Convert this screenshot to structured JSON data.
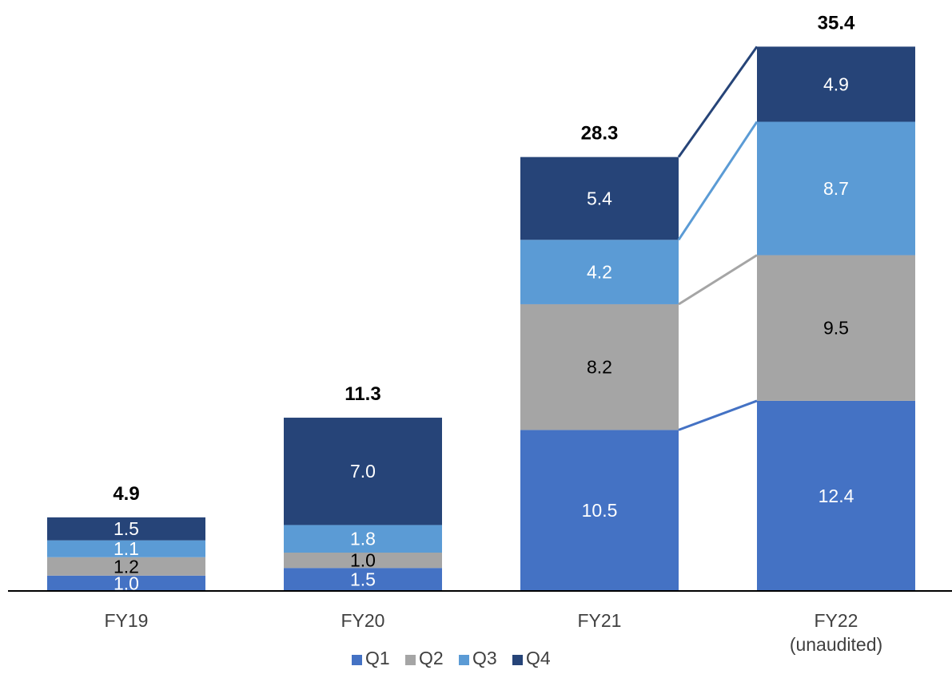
{
  "chart_data": {
    "type": "bar",
    "stacked": true,
    "categories": [
      [
        "FY19"
      ],
      [
        "FY20"
      ],
      [
        "FY21"
      ],
      [
        "FY22",
        "(unaudited)"
      ]
    ],
    "series": [
      {
        "name": "Q1",
        "color": "#4472C4",
        "values": [
          1.0,
          1.5,
          10.5,
          12.4
        ],
        "label_color": "#ffffff"
      },
      {
        "name": "Q2",
        "color": "#A5A5A5",
        "values": [
          1.2,
          1.0,
          8.2,
          9.5
        ],
        "label_color": "#000000"
      },
      {
        "name": "Q3",
        "color": "#5B9BD5",
        "values": [
          1.1,
          1.8,
          4.2,
          8.7
        ],
        "label_color": "#ffffff"
      },
      {
        "name": "Q4",
        "color": "#264478",
        "values": [
          1.5,
          7.0,
          5.4,
          4.9
        ],
        "label_color": "#ffffff"
      }
    ],
    "segment_labels": [
      [
        "1.0",
        "1.2",
        "1.1",
        "1.5"
      ],
      [
        "1.5",
        "1.0",
        "1.8",
        "7.0"
      ],
      [
        "10.5",
        "8.2",
        "4.2",
        "5.4"
      ],
      [
        "12.4",
        "9.5",
        "8.7",
        "4.9"
      ]
    ],
    "totals": [
      4.9,
      11.3,
      28.3,
      35.4
    ],
    "total_labels": [
      "4.9",
      "11.3",
      "28.3",
      "35.4"
    ],
    "series_lines": {
      "between": [
        "FY21",
        "FY22 (unaudited)"
      ]
    },
    "legend_position": "bottom",
    "grid": false,
    "title": "",
    "xlabel": "",
    "ylabel": ""
  }
}
